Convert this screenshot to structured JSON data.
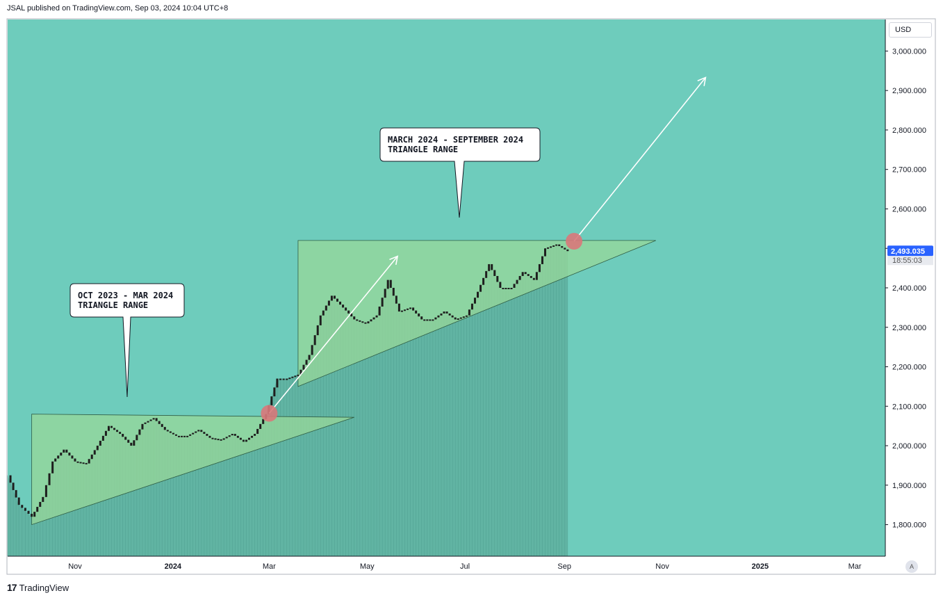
{
  "header": {
    "published_text": "JSAL published on TradingView.com, Sep 03, 2024 10:04 UTC+8"
  },
  "footer": {
    "logo_mark": "17",
    "logo_text": "TradingView"
  },
  "controls": {
    "currency_label": "USD",
    "auto_scale_label": "A"
  },
  "colors": {
    "plot_background": "#6ECCBC",
    "triangle_fill": "#98D89A",
    "area_fill": "#5FAF9F",
    "candle": "#1E1E1E",
    "breakout_marker": "#D9787A",
    "arrow": "#FFFFFF",
    "price_label_bg": "#2962FF"
  },
  "callouts": [
    {
      "id": "oct-mar",
      "text": "OCT 2023 - MAR 2024\nTRIANGLE RANGE"
    },
    {
      "id": "mar-sep",
      "text": "MARCH 2024 - SEPTEMBER 2024\nTRIANGLE RANGE"
    }
  ],
  "chart_data": {
    "type": "line",
    "title": "",
    "xlabel": "",
    "ylabel": "",
    "currency": "USD",
    "current_price": "2,493.035",
    "countdown": "18:55:03",
    "ylim": [
      1720,
      3080
    ],
    "y_ticks": [
      "1,800.000",
      "1,900.000",
      "2,000.000",
      "2,100.000",
      "2,200.000",
      "2,300.000",
      "2,400.000",
      "2,500.000",
      "2,600.000",
      "2,700.000",
      "2,800.000",
      "2,900.000",
      "3,000.000"
    ],
    "y_tick_values": [
      1800,
      1900,
      2000,
      2100,
      2200,
      2300,
      2400,
      2500,
      2600,
      2700,
      2800,
      2900,
      3000
    ],
    "x_ticks": [
      "Nov",
      "2024",
      "Mar",
      "May",
      "Jul",
      "Sep",
      "Nov",
      "2025",
      "Mar"
    ],
    "x_tick_dates": [
      "2023-11-01",
      "2024-01-01",
      "2024-03-01",
      "2024-05-01",
      "2024-07-01",
      "2024-09-01",
      "2024-11-01",
      "2025-01-01",
      "2025-03-01"
    ],
    "x_range": [
      "2023-09-20",
      "2025-03-20"
    ],
    "series": [
      {
        "x": [
          "2023-09-20",
          "2023-09-27",
          "2023-10-05",
          "2023-10-12",
          "2023-10-18",
          "2023-10-25",
          "2023-11-01",
          "2023-11-08",
          "2023-11-15",
          "2023-11-22",
          "2023-11-29",
          "2023-12-06",
          "2023-12-13",
          "2023-12-20",
          "2023-12-27",
          "2024-01-03",
          "2024-01-10",
          "2024-01-17",
          "2024-01-24",
          "2024-01-31",
          "2024-02-07",
          "2024-02-14",
          "2024-02-21",
          "2024-02-28",
          "2024-03-06",
          "2024-03-12",
          "2024-03-19",
          "2024-03-26",
          "2024-04-02",
          "2024-04-09",
          "2024-04-16",
          "2024-04-23",
          "2024-04-30",
          "2024-05-07",
          "2024-05-14",
          "2024-05-21",
          "2024-05-28",
          "2024-06-04",
          "2024-06-11",
          "2024-06-18",
          "2024-06-25",
          "2024-07-02",
          "2024-07-09",
          "2024-07-16",
          "2024-07-23",
          "2024-07-30",
          "2024-08-06",
          "2024-08-13",
          "2024-08-20",
          "2024-08-27",
          "2024-09-03"
        ],
        "y": [
          1925,
          1850,
          1820,
          1870,
          1960,
          1990,
          1960,
          1955,
          2000,
          2050,
          2030,
          2000,
          2055,
          2070,
          2040,
          2025,
          2025,
          2040,
          2020,
          2015,
          2030,
          2010,
          2030,
          2080,
          2170,
          2170,
          2180,
          2230,
          2330,
          2380,
          2350,
          2320,
          2310,
          2330,
          2420,
          2340,
          2350,
          2320,
          2320,
          2340,
          2320,
          2330,
          2390,
          2460,
          2400,
          2400,
          2440,
          2420,
          2500,
          2510,
          2493
        ]
      }
    ],
    "annotations": {
      "triangle_1": {
        "points": [
          [
            "2023-10-05",
            2080
          ],
          [
            "2024-04-23",
            2072
          ],
          [
            "2023-10-05",
            1800
          ]
        ]
      },
      "triangle_2": {
        "points": [
          [
            "2024-03-19",
            2520
          ],
          [
            "2024-10-28",
            2520
          ],
          [
            "2024-03-19",
            2150
          ]
        ]
      },
      "breakout_markers": [
        {
          "x": "2024-03-01",
          "y": 2082
        },
        {
          "x": "2024-09-07",
          "y": 2518
        }
      ],
      "arrows": [
        {
          "from": [
            "2024-03-01",
            2082
          ],
          "to": [
            "2024-05-20",
            2480
          ]
        },
        {
          "from": [
            "2024-09-07",
            2518
          ],
          "to": [
            "2024-11-28",
            2933
          ]
        }
      ]
    }
  }
}
